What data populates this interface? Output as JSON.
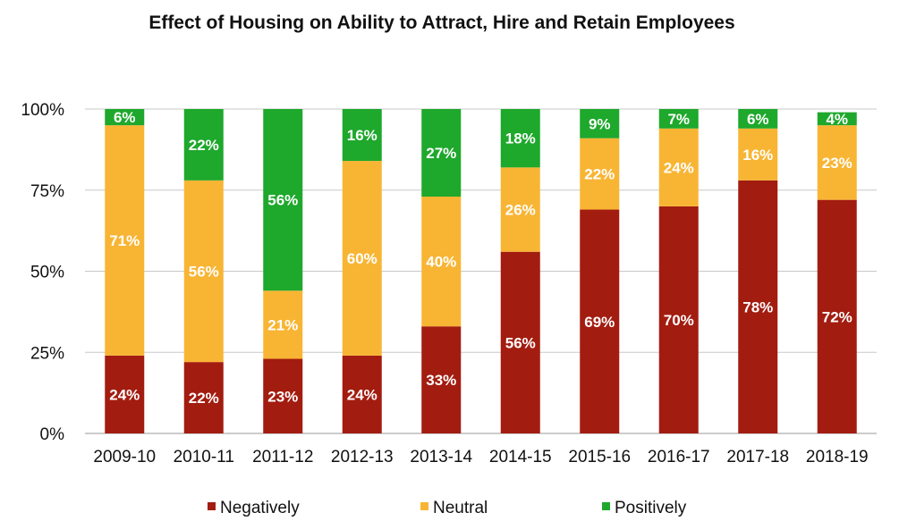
{
  "chart_data": {
    "type": "bar",
    "stacked": true,
    "title": "Effect of Housing on Ability to Attract, Hire and Retain Employees",
    "categories": [
      "2009-10",
      "2010-11",
      "2011-12",
      "2012-13",
      "2013-14",
      "2014-15",
      "2015-16",
      "2016-17",
      "2017-18",
      "2018-19"
    ],
    "series": [
      {
        "name": "Negatively",
        "color": "#a31c10",
        "values": [
          24,
          22,
          23,
          24,
          33,
          56,
          69,
          70,
          78,
          72
        ],
        "labels": [
          "24%",
          "22%",
          "23%",
          "24%",
          "33%",
          "56%",
          "69%",
          "70%",
          "78%",
          "72%"
        ]
      },
      {
        "name": "Neutral",
        "color": "#f8b534",
        "values": [
          71,
          56,
          21,
          60,
          40,
          26,
          22,
          24,
          16,
          23
        ],
        "labels": [
          "71%",
          "56%",
          "21%",
          "60%",
          "40%",
          "26%",
          "22%",
          "24%",
          "16%",
          "23%"
        ]
      },
      {
        "name": "Positively",
        "color": "#1ea82c",
        "values": [
          6,
          22,
          56,
          16,
          27,
          18,
          9,
          7,
          6,
          4
        ],
        "labels": [
          "6%",
          "22%",
          "56%",
          "16%",
          "27%",
          "18%",
          "9%",
          "7%",
          "6%",
          "4%"
        ]
      }
    ],
    "y_ticks": [
      "0%",
      "25%",
      "50%",
      "75%",
      "100%"
    ],
    "ylim": [
      0,
      100
    ],
    "grid": true,
    "legend_position": "bottom"
  }
}
